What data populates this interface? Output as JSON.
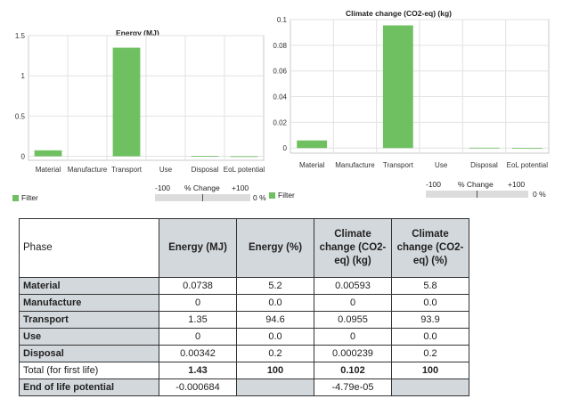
{
  "chart_data": [
    {
      "type": "bar",
      "title": "Energy (MJ)",
      "categories": [
        "Material",
        "Manufacture",
        "Transport",
        "Use",
        "Disposal",
        "EoL potential"
      ],
      "values": [
        0.0738,
        0,
        1.35,
        0,
        0.00342,
        -0.000684
      ],
      "ylim": [
        -0.05,
        1.5
      ],
      "yticks": [
        "0",
        "0.5",
        "1",
        "1.5"
      ],
      "ytick_values": [
        0,
        0.5,
        1,
        1.5
      ],
      "grid": true,
      "color": "#6fc060"
    },
    {
      "type": "bar",
      "title": "Climate change (CO2-eq) (kg)",
      "categories": [
        "Material",
        "Manufacture",
        "Transport",
        "Use",
        "Disposal",
        "EoL potential"
      ],
      "values": [
        0.00593,
        0,
        0.0955,
        0,
        0.000239,
        -4.79e-05
      ],
      "ylim": [
        -0.004,
        0.1
      ],
      "yticks": [
        "0",
        "0.02",
        "0.04",
        "0.06",
        "0.08",
        "0.1"
      ],
      "ytick_values": [
        0,
        0.02,
        0.04,
        0.06,
        0.08,
        0.1
      ],
      "grid": true,
      "color": "#6fc060"
    }
  ],
  "left_panel": {
    "legend_label": "Filter",
    "slider_min": "-100",
    "slider_label": "% Change",
    "slider_max": "+100",
    "slider_value": "0 %"
  },
  "right_panel": {
    "legend_label": "Filter",
    "slider_min": "-100",
    "slider_label": "% Change",
    "slider_max": "+100",
    "slider_value": "0 %"
  },
  "table": {
    "headers": {
      "phase": "Phase",
      "energy_mj": "Energy (MJ)",
      "energy_pct": "Energy (%)",
      "climate_kg": "Climate change (CO2-eq) (kg)",
      "climate_pct": "Climate change (CO2-eq) (%)"
    },
    "rows": [
      {
        "phase": "Material",
        "energy_mj": "0.0738",
        "energy_pct": "5.2",
        "climate_kg": "0.00593",
        "climate_pct": "5.8"
      },
      {
        "phase": "Manufacture",
        "energy_mj": "0",
        "energy_pct": "0.0",
        "climate_kg": "0",
        "climate_pct": "0.0"
      },
      {
        "phase": "Transport",
        "energy_mj": "1.35",
        "energy_pct": "94.6",
        "climate_kg": "0.0955",
        "climate_pct": "93.9"
      },
      {
        "phase": "Use",
        "energy_mj": "0",
        "energy_pct": "0.0",
        "climate_kg": "0",
        "climate_pct": "0.0"
      },
      {
        "phase": "Disposal",
        "energy_mj": "0.00342",
        "energy_pct": "0.2",
        "climate_kg": "0.000239",
        "climate_pct": "0.2"
      }
    ],
    "total": {
      "phase": "Total (for first life)",
      "energy_mj": "1.43",
      "energy_pct": "100",
      "climate_kg": "0.102",
      "climate_pct": "100"
    },
    "eol": {
      "phase": "End of life potential",
      "energy_mj": "-0.000684",
      "energy_pct": "",
      "climate_kg": "-4.79e-05",
      "climate_pct": ""
    }
  }
}
